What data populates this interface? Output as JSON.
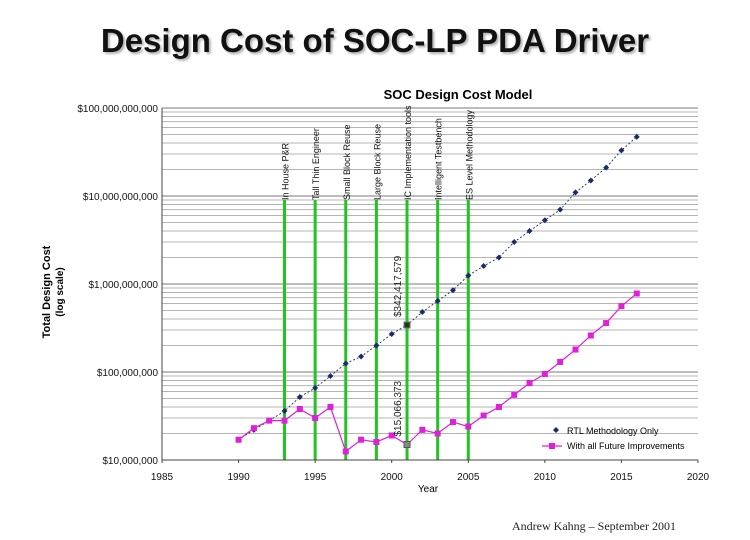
{
  "slide_title": "Design Cost of SOC-LP PDA Driver",
  "footer": "Andrew Kahng – September 2001",
  "chart_data": {
    "type": "line",
    "title": "SOC Design Cost Model",
    "xlabel": "Year",
    "ylabel": "Total Design Cost",
    "ylabel_sub": "(log scale)",
    "y_scale": "log",
    "xlim": [
      1985,
      2020
    ],
    "ylim": [
      10000000,
      100000000000
    ],
    "x_ticks": [
      1985,
      1990,
      1995,
      2000,
      2005,
      2010,
      2015,
      2020
    ],
    "y_ticks": [
      {
        "value": 10000000,
        "label": "$10,000,000"
      },
      {
        "value": 100000000,
        "label": "$100,000,000"
      },
      {
        "value": 1000000000,
        "label": "$1,000,000,000"
      },
      {
        "value": 10000000000,
        "label": "$10,000,000,000"
      },
      {
        "value": 100000000000,
        "label": "$100,000,000,000"
      }
    ],
    "grid": "horizontal log minor lines",
    "legend_position": "bottom-right",
    "series": [
      {
        "name": "RTL Methodology Only",
        "color": "#1f2a6b",
        "marker": "diamond",
        "x": [
          1990,
          1991,
          1992,
          1993,
          1994,
          1995,
          1996,
          1997,
          1998,
          1999,
          2000,
          2001,
          2002,
          2003,
          2004,
          2005,
          2006,
          2007,
          2008,
          2009,
          2010,
          2011,
          2012,
          2013,
          2014,
          2015,
          2016
        ],
        "y": [
          17000000,
          22000000,
          28000000,
          36000000,
          52000000,
          66000000,
          90000000,
          125000000,
          150000000,
          200000000,
          270000000,
          342000000,
          480000000,
          640000000,
          850000000,
          1250000000,
          1600000000,
          2000000000,
          3000000000,
          4000000000,
          5300000000,
          7000000000,
          11000000000,
          15000000000,
          21000000000,
          33000000000,
          47000000000
        ]
      },
      {
        "name": "With all Future Improvements",
        "color": "#e020d8",
        "marker": "square",
        "x": [
          1990,
          1991,
          1992,
          1993,
          1994,
          1995,
          1996,
          1997,
          1998,
          1999,
          2000,
          2001,
          2002,
          2003,
          2004,
          2005,
          2006,
          2007,
          2008,
          2009,
          2010,
          2011,
          2012,
          2013,
          2014,
          2015,
          2016
        ],
        "y": [
          17000000,
          23000000,
          28000000,
          28000000,
          38000000,
          30000000,
          40000000,
          12500000,
          17000000,
          16000000,
          19000000,
          15000000,
          22000000,
          20000000,
          27000000,
          24000000,
          32000000,
          40000000,
          55000000,
          75000000,
          95000000,
          130000000,
          180000000,
          260000000,
          360000000,
          560000000,
          780000000
        ]
      }
    ],
    "vlines": [
      {
        "x": 1993,
        "label": "In House P&R"
      },
      {
        "x": 1995,
        "label": "Tall Thin Engineer"
      },
      {
        "x": 1997,
        "label": "Small Block Reuse"
      },
      {
        "x": 1999,
        "label": "Large Block Reuse"
      },
      {
        "x": 2001,
        "label": "IC Implementation tools"
      },
      {
        "x": 2003,
        "label": "Intelligent Testbench"
      },
      {
        "x": 2005,
        "label": "ES Level Methodology"
      }
    ],
    "vline_color": "#22c322",
    "annotations": [
      {
        "text": "$342,417,579",
        "x": 2001,
        "y": 342000000
      },
      {
        "text": "$15,066,373",
        "x": 2001,
        "y": 15000000
      }
    ]
  }
}
